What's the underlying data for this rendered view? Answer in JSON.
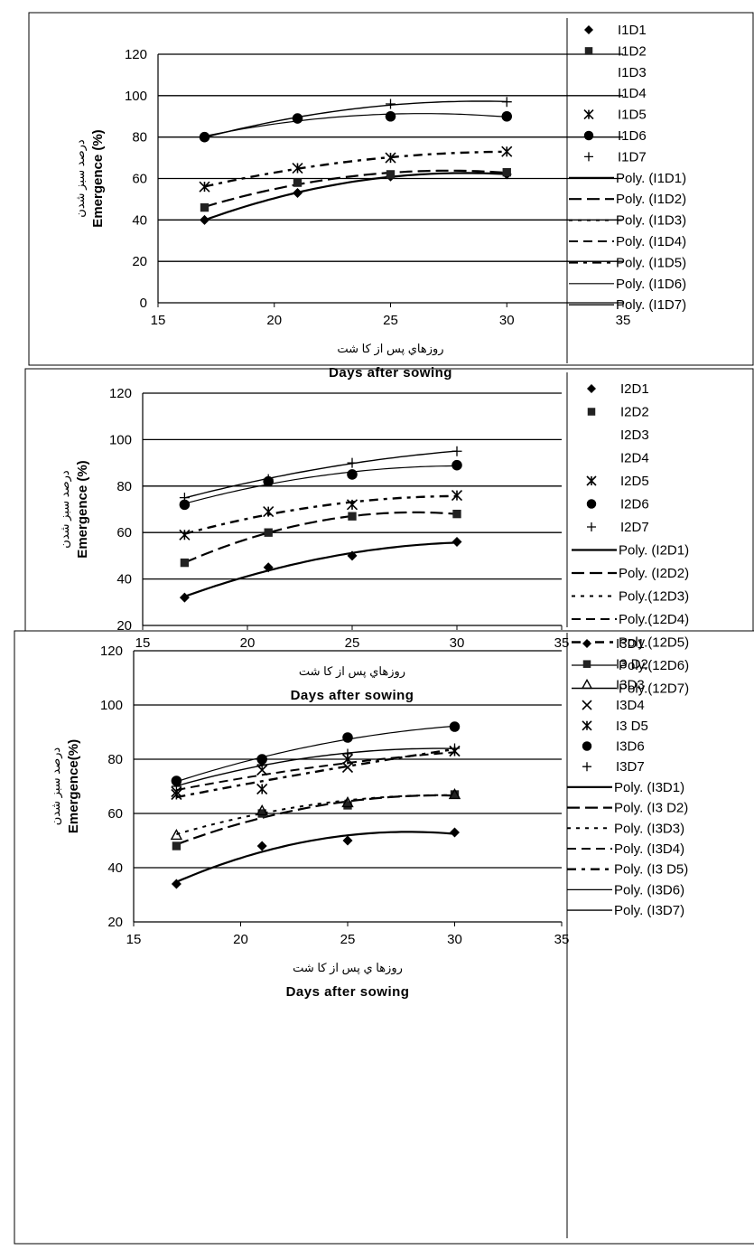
{
  "chart_data": [
    {
      "type": "scatter",
      "ylabel": "Emergence (%)",
      "ylabel_fa": "درصد سبز شدن",
      "xlabel": "Days after sowing",
      "xlabel_fa": "روزهاي پس از كا شت",
      "xlim": [
        15,
        35
      ],
      "ylim": [
        0,
        120
      ],
      "xticks": [
        "15",
        "20",
        "25",
        "30",
        "35"
      ],
      "yticks": [
        "0",
        "20",
        "40",
        "60",
        "80",
        "100",
        "120"
      ],
      "grid": "horizontal",
      "legend_position": "right",
      "x": [
        17,
        21,
        25,
        30
      ],
      "series": [
        {
          "name": "I1D1",
          "marker": "diamond",
          "values": [
            40,
            53,
            61,
            62
          ]
        },
        {
          "name": "I1D2",
          "marker": "square",
          "values": [
            46,
            58,
            62,
            63
          ]
        },
        {
          "name": "I1D3",
          "marker": "none",
          "values": []
        },
        {
          "name": "I1D4",
          "marker": "none",
          "values": []
        },
        {
          "name": "I1D5",
          "marker": "asterisk",
          "values": [
            56,
            65,
            70,
            73
          ]
        },
        {
          "name": "I1D6",
          "marker": "circle",
          "values": [
            80,
            89,
            90,
            90
          ]
        },
        {
          "name": "I1D7",
          "marker": "plus",
          "values": [
            80,
            89,
            96,
            97
          ]
        }
      ],
      "trend_legend": [
        "Poly. (I1D1)",
        "Poly. (I1D2)",
        "Poly. (I1D3)",
        "Poly. (I1D4)",
        "Poly. (I1D5)",
        "Poly. (I1D6)",
        "Poly. (I1D7)"
      ]
    },
    {
      "type": "scatter",
      "ylabel": "Emergence (%)",
      "ylabel_fa": "درصد سبز شدن",
      "xlabel": "Days after sowing",
      "xlabel_fa": "روزهاي پس از كا شت",
      "xlim": [
        15,
        35
      ],
      "ylim": [
        20,
        120
      ],
      "xticks": [
        "15",
        "20",
        "25",
        "30",
        "35"
      ],
      "yticks": [
        "20",
        "40",
        "60",
        "80",
        "100",
        "120"
      ],
      "grid": "horizontal",
      "legend_position": "right",
      "x": [
        17,
        21,
        25,
        30
      ],
      "series": [
        {
          "name": "I2D1",
          "marker": "diamond",
          "values": [
            32,
            45,
            50,
            56
          ]
        },
        {
          "name": "I2D2",
          "marker": "square",
          "values": [
            47,
            60,
            67,
            68
          ]
        },
        {
          "name": "I2D3",
          "marker": "none",
          "values": []
        },
        {
          "name": "I2D4",
          "marker": "none",
          "values": []
        },
        {
          "name": "I2D5",
          "marker": "asterisk",
          "values": [
            59,
            69,
            72,
            76
          ]
        },
        {
          "name": "I2D6",
          "marker": "circle",
          "values": [
            72,
            82,
            85,
            89
          ]
        },
        {
          "name": "I2D7",
          "marker": "plus",
          "values": [
            75,
            83,
            90,
            95
          ]
        }
      ],
      "trend_legend": [
        "Poly. (I2D1)",
        "Poly. (I2D2)",
        "Poly.(12D3)",
        "Poly.(12D4)",
        "Poly.(12D5)",
        "Poly.(12D6)",
        "Poly.(12D7)"
      ]
    },
    {
      "type": "scatter",
      "ylabel": "Emergence(%)",
      "ylabel_fa": "درصد سبز شدن",
      "xlabel": "Days after sowing",
      "xlabel_fa": "روزها ي پس از كا شت",
      "xlim": [
        15,
        35
      ],
      "ylim": [
        20,
        120
      ],
      "xticks": [
        "15",
        "20",
        "25",
        "30",
        "35"
      ],
      "yticks": [
        "20",
        "40",
        "60",
        "80",
        "100",
        "120"
      ],
      "grid": "horizontal",
      "legend_position": "right",
      "x": [
        17,
        21,
        25,
        30
      ],
      "series": [
        {
          "name": "I3D1",
          "marker": "diamond",
          "values": [
            34,
            48,
            50,
            53
          ]
        },
        {
          "name": "I3 D2",
          "marker": "square",
          "values": [
            48,
            60,
            63,
            67
          ]
        },
        {
          "name": "I3D3",
          "marker": "triangle",
          "values": [
            52,
            61,
            64,
            67
          ]
        },
        {
          "name": "I3D4",
          "marker": "x",
          "values": [
            68,
            76,
            77,
            83
          ]
        },
        {
          "name": "I3 D5",
          "marker": "asterisk",
          "values": [
            67,
            69,
            80,
            83
          ]
        },
        {
          "name": "I3D6",
          "marker": "circle",
          "values": [
            72,
            80,
            88,
            92
          ]
        },
        {
          "name": "I3D7",
          "marker": "plus",
          "values": [
            70,
            78,
            82,
            84
          ]
        }
      ],
      "trend_legend": [
        "Poly. (I3D1)",
        "Poly. (I3 D2)",
        "Poly. (I3D3)",
        "Poly. (I3D4)",
        "Poly. (I3 D5)",
        "Poly. (I3D6)",
        "Poly. (I3D7)"
      ]
    }
  ]
}
